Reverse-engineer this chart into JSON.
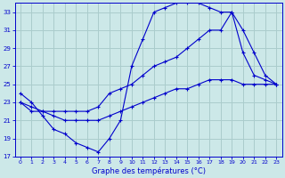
{
  "xlabel": "Graphe des températures (°C)",
  "background_color": "#cce8e8",
  "grid_color": "#aacccc",
  "line_color": "#0000cc",
  "xlim": [
    -0.5,
    23.5
  ],
  "ylim": [
    17,
    34
  ],
  "yticks": [
    17,
    19,
    21,
    23,
    25,
    27,
    29,
    31,
    33
  ],
  "xticks": [
    0,
    1,
    2,
    3,
    4,
    5,
    6,
    7,
    8,
    9,
    10,
    11,
    12,
    13,
    14,
    15,
    16,
    17,
    18,
    19,
    20,
    21,
    22,
    23
  ],
  "series1_x": [
    0,
    1,
    2,
    3,
    4,
    5,
    6,
    7,
    8,
    9,
    10,
    11,
    12,
    13,
    14,
    15,
    16,
    17,
    18,
    19,
    20,
    21,
    22,
    23
  ],
  "series1_y": [
    24.0,
    23.0,
    21.5,
    20.0,
    19.5,
    18.5,
    18.0,
    17.5,
    19.0,
    21.0,
    27.0,
    30.0,
    33.0,
    33.5,
    34.0,
    34.0,
    34.0,
    33.5,
    33.0,
    33.0,
    28.5,
    26.0,
    25.5,
    25.0
  ],
  "series2_x": [
    0,
    1,
    2,
    3,
    4,
    5,
    6,
    7,
    8,
    9,
    10,
    11,
    12,
    13,
    14,
    15,
    16,
    17,
    18,
    19,
    20,
    21,
    22,
    23
  ],
  "series2_y": [
    23.0,
    22.0,
    22.0,
    22.0,
    22.0,
    22.0,
    22.0,
    22.5,
    24.0,
    24.5,
    25.0,
    26.0,
    27.0,
    27.5,
    28.0,
    29.0,
    30.0,
    31.0,
    31.0,
    33.0,
    31.0,
    28.5,
    26.0,
    25.0
  ],
  "series3_x": [
    0,
    1,
    2,
    3,
    4,
    5,
    6,
    7,
    8,
    9,
    10,
    11,
    12,
    13,
    14,
    15,
    16,
    17,
    18,
    19,
    20,
    21,
    22,
    23
  ],
  "series3_y": [
    23.0,
    22.5,
    22.0,
    21.5,
    21.0,
    21.0,
    21.0,
    21.0,
    21.5,
    22.0,
    22.5,
    23.0,
    23.5,
    24.0,
    24.5,
    24.5,
    25.0,
    25.5,
    25.5,
    25.5,
    25.0,
    25.0,
    25.0,
    25.0
  ]
}
